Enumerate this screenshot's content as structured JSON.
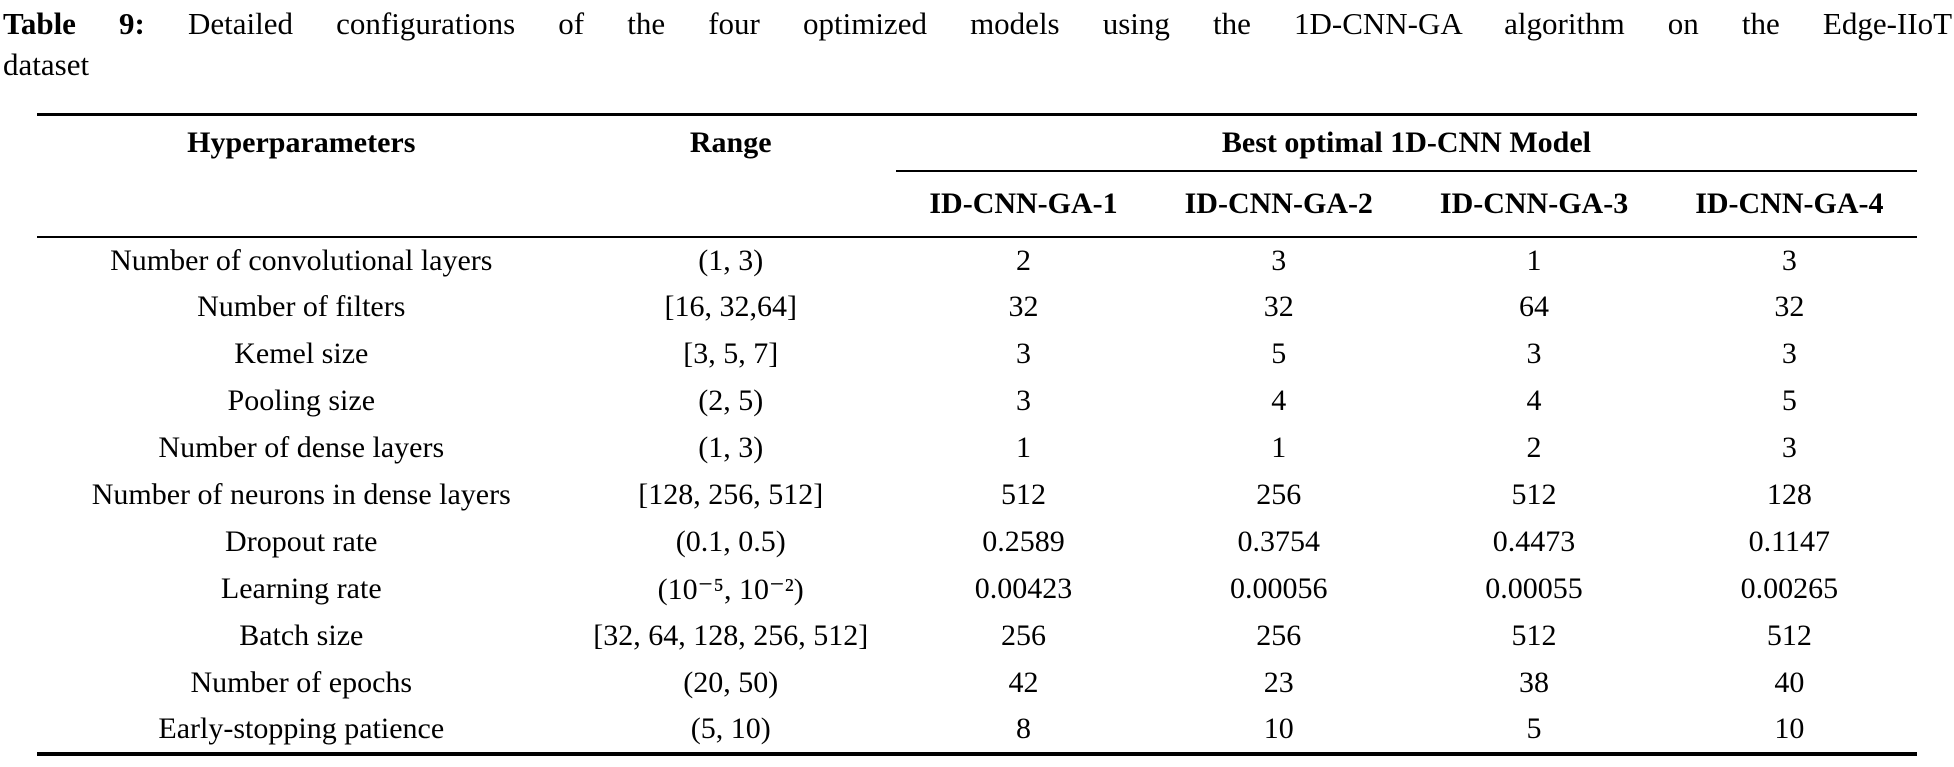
{
  "caption": {
    "label": "Table 9:",
    "line1": "Detailed configurations of the four optimized models using the 1D-CNN-GA algorithm on the Edge-IIoT",
    "line2": "dataset"
  },
  "table": {
    "col_headers": {
      "hyperparameters": "Hyperparameters",
      "range": "Range",
      "group": "Best optimal 1D-CNN Model",
      "models": [
        "ID-CNN-GA-1",
        "ID-CNN-GA-2",
        "ID-CNN-GA-3",
        "ID-CNN-GA-4"
      ]
    },
    "rows": [
      {
        "param": "Number of convolutional layers",
        "range": "(1, 3)",
        "values": [
          "2",
          "3",
          "1",
          "3"
        ]
      },
      {
        "param": "Number of filters",
        "range": "[16, 32,64]",
        "values": [
          "32",
          "32",
          "64",
          "32"
        ]
      },
      {
        "param": "Kemel size",
        "range": "[3, 5, 7]",
        "values": [
          "3",
          "5",
          "3",
          "3"
        ]
      },
      {
        "param": "Pooling size",
        "range": "(2, 5)",
        "values": [
          "3",
          "4",
          "4",
          "5"
        ]
      },
      {
        "param": "Number of dense layers",
        "range": "(1, 3)",
        "values": [
          "1",
          "1",
          "2",
          "3"
        ]
      },
      {
        "param": "Number of neurons in dense layers",
        "range": "[128, 256, 512]",
        "values": [
          "512",
          "256",
          "512",
          "128"
        ]
      },
      {
        "param": "Dropout rate",
        "range": "(0.1, 0.5)",
        "values": [
          "0.2589",
          "0.3754",
          "0.4473",
          "0.1147"
        ]
      },
      {
        "param": "Learning rate",
        "range": "(10⁻⁵, 10⁻²)",
        "values": [
          "0.00423",
          "0.00056",
          "0.00055",
          "0.00265"
        ]
      },
      {
        "param": "Batch size",
        "range": "[32, 64, 128, 256, 512]",
        "values": [
          "256",
          "256",
          "512",
          "512"
        ]
      },
      {
        "param": "Number of epochs",
        "range": "(20, 50)",
        "values": [
          "42",
          "23",
          "38",
          "40"
        ]
      },
      {
        "param": "Early-stopping patience",
        "range": "(5, 10)",
        "values": [
          "8",
          "10",
          "5",
          "10"
        ]
      }
    ]
  },
  "colors": {
    "text": "#000000",
    "background": "#ffffff",
    "rule": "#000000"
  }
}
